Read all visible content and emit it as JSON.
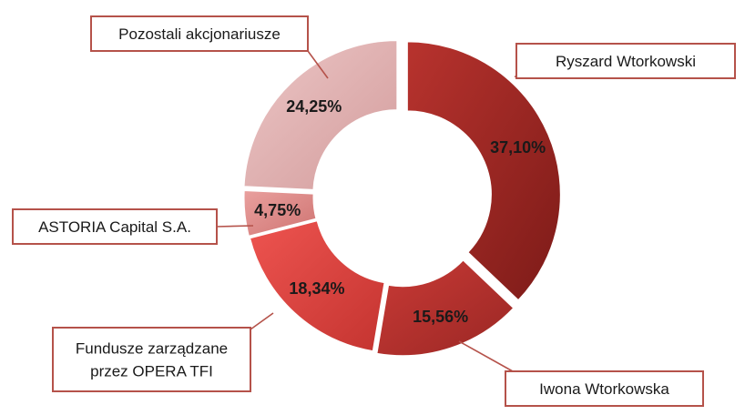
{
  "chart_data": {
    "type": "pie",
    "variant": "donut",
    "title": "",
    "categories": [
      "Ryszard Wtorkowski",
      "Iwona Wtorkowska",
      "Fundusze zarządzane przez OPERA TFI",
      "ASTORIA Capital S.A.",
      "Pozostali akcjonariusze"
    ],
    "values": [
      37.1,
      15.56,
      18.34,
      4.75,
      24.25
    ],
    "data_labels": [
      "37,10%",
      "15,56%",
      "18,34%",
      "4,75%",
      "24,25%"
    ],
    "callout_lines": [
      [
        "Ryszard Wtorkowski"
      ],
      [
        "Iwona Wtorkowska"
      ],
      [
        "Fundusze zarządzane",
        "przez OPERA TFI"
      ],
      [
        "ASTORIA Capital S.A."
      ],
      [
        "Pozostali akcjonariusze"
      ]
    ],
    "colors": [
      "#a32a26",
      "#b83330",
      "#d8403c",
      "#dc8a88",
      "#ddb0b0"
    ],
    "legend": "none"
  }
}
